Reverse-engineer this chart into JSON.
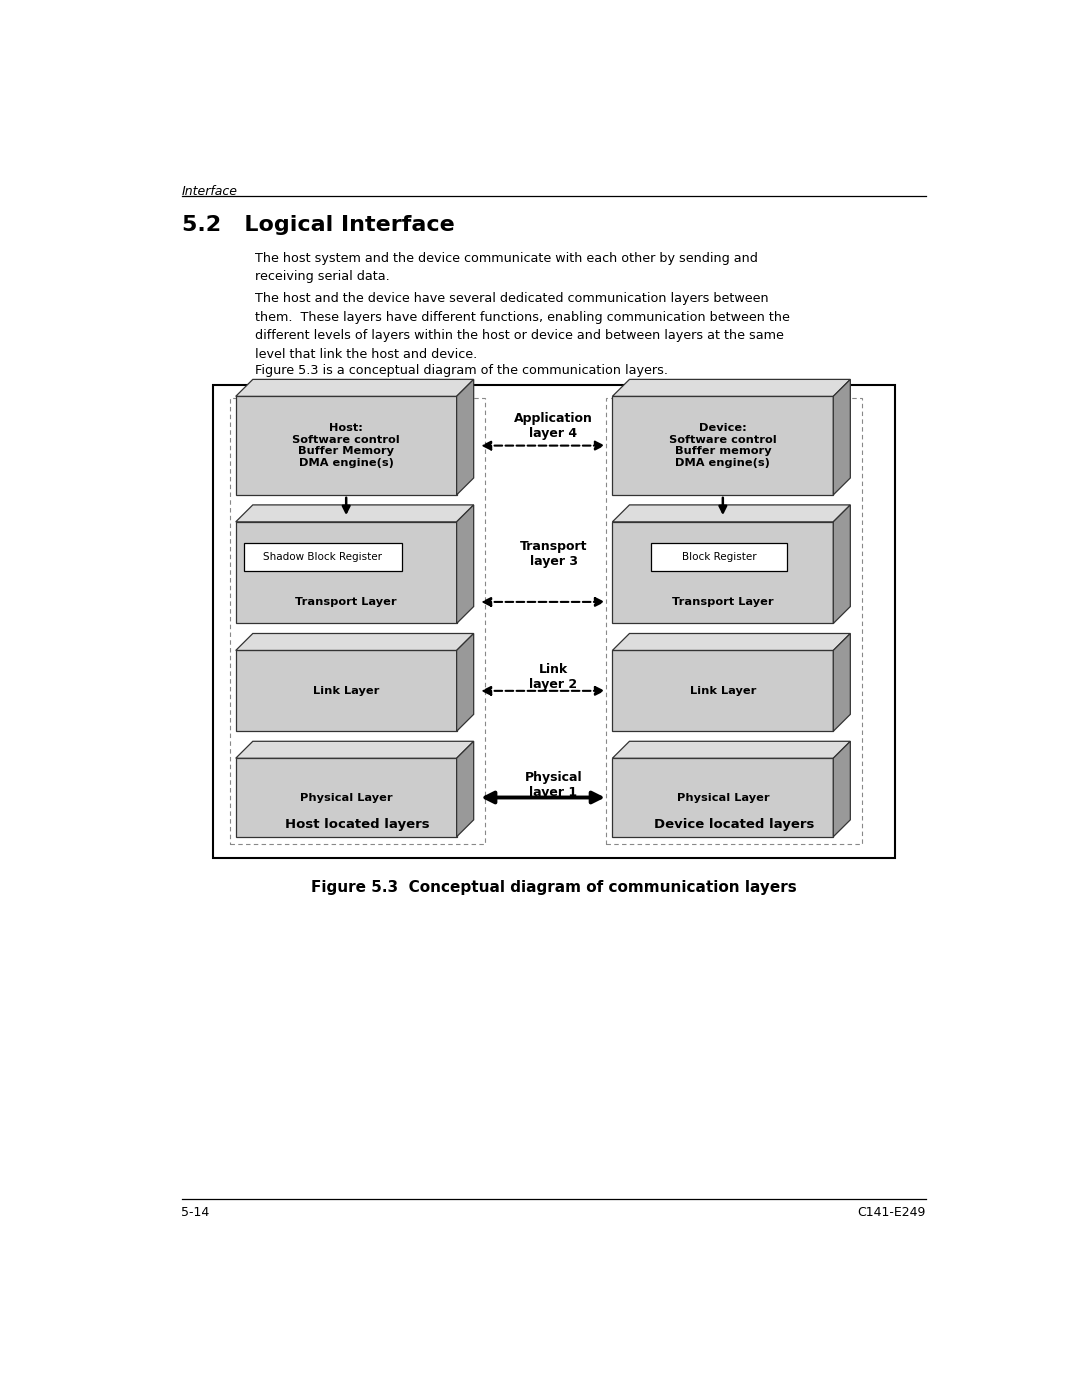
{
  "page_title": "Interface",
  "section_title": "5.2   Logical Interface",
  "para1": "The host system and the device communicate with each other by sending and\nreceiving serial data.",
  "para2": "The host and the device have several dedicated communication layers between\nthem.  These layers have different functions, enabling communication between the\ndifferent levels of layers within the host or device and between layers at the same\nlevel that link the host and device.",
  "para3": "Figure 5.3 is a conceptual diagram of the communication layers.",
  "figure_caption": "Figure 5.3  Conceptual diagram of communication layers",
  "footer_left": "5-14",
  "footer_right": "C141-E249",
  "bg_color": "#ffffff",
  "layer_face_color": "#cccccc",
  "layer_side_color": "#999999",
  "layer_top_color": "#dddddd",
  "app_layer_label": "Application\nlayer 4",
  "transport_layer_label": "Transport\nlayer 3",
  "link_layer_label": "Link\nlayer 2",
  "physical_layer_label": "Physical\nlayer 1",
  "host_box_title": "Host:\nSoftware control\nBuffer Memory\nDMA engine(s)",
  "device_box_title": "Device:\nSoftware control\nBuffer memory\nDMA engine(s)",
  "host_shadow_register": "Shadow Block Register",
  "device_register": "Block Register",
  "transport_layer_text": "Transport Layer",
  "link_layer_text": "Link Layer",
  "physical_layer_text": "Physical Layer",
  "host_located_label": "Host located layers",
  "device_located_label": "Device located layers"
}
